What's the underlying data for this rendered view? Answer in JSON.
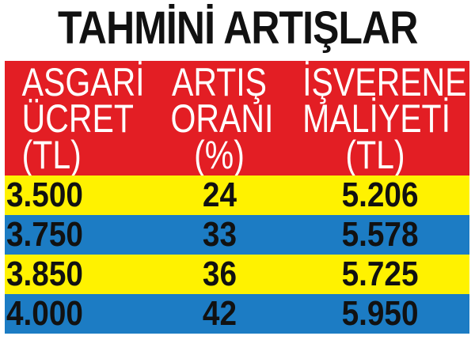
{
  "title": "TAHMİNİ ARTIŞLAR",
  "colors": {
    "header": "#e31e24",
    "row_odd": "#fff200",
    "row_even": "#1c7cc4"
  },
  "chart_data": {
    "type": "table",
    "title": "TAHMİNİ ARTIŞLAR",
    "columns": [
      [
        "ASGARİ",
        "ÜCRET",
        "(TL)"
      ],
      [
        "ARTIŞ",
        "ORANI",
        "(%)"
      ],
      [
        "İŞVERENE",
        "MALİYETİ",
        "(TL)"
      ]
    ],
    "rows": [
      [
        "3.500",
        "24",
        "5.206"
      ],
      [
        "3.750",
        "33",
        "5.578"
      ],
      [
        "3.850",
        "36",
        "5.725"
      ],
      [
        "4.000",
        "42",
        "5.950"
      ]
    ]
  }
}
